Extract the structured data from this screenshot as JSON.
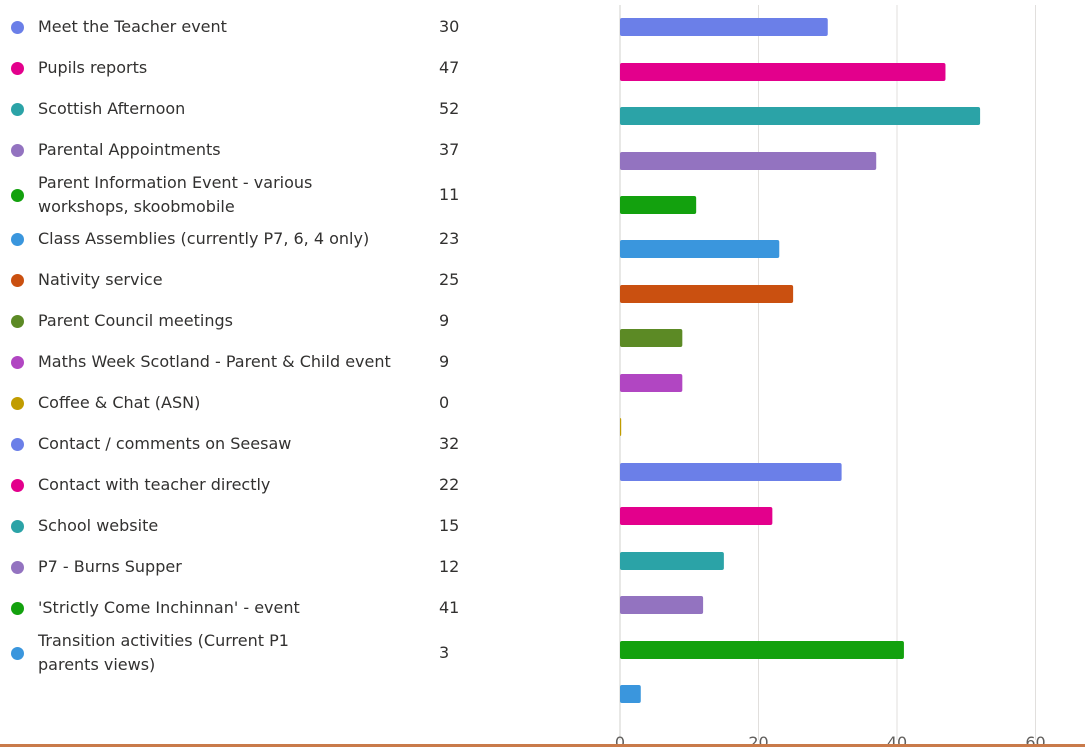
{
  "chart_data": {
    "type": "bar",
    "orientation": "horizontal",
    "categories": [
      "Meet the Teacher event",
      "Pupils reports",
      "Scottish Afternoon",
      "Parental Appointments",
      "Parent Information Event - various workshops, skoobmobile",
      "Class Assemblies (currently P7, 6, 4 only)",
      "Nativity service",
      "Parent Council meetings",
      "Maths Week Scotland - Parent & Child event",
      "Coffee & Chat (ASN)",
      "Contact / comments on Seesaw",
      "Contact with teacher directly",
      "School website",
      "P7 - Burns Supper",
      "'Strictly Come Inchinnan' - event",
      "Transition activities (Current P1 parents views)"
    ],
    "values": [
      30,
      47,
      52,
      37,
      11,
      23,
      25,
      9,
      9,
      0,
      32,
      22,
      15,
      12,
      41,
      3
    ],
    "colors": [
      "#6b7fe8",
      "#e3008c",
      "#2ba3a7",
      "#9373c0",
      "#13a10e",
      "#3a96dd",
      "#ca5010",
      "#5c8a25",
      "#b146c2",
      "#c19c00",
      "#6b7fe8",
      "#e3008c",
      "#2ba3a7",
      "#9373c0",
      "#13a10e",
      "#3a96dd"
    ],
    "xlim": [
      0,
      60
    ],
    "xticks": [
      "0",
      "20",
      "40",
      "60"
    ],
    "grid": true,
    "legend": "left"
  }
}
